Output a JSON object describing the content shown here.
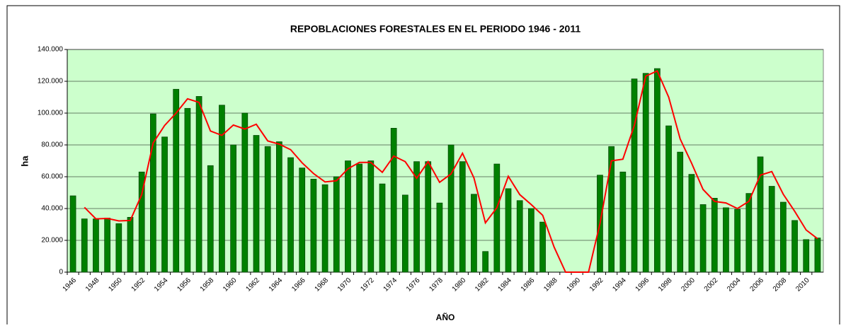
{
  "chart_data": {
    "type": "bar",
    "title": "REPOBLACIONES FORESTALES EN EL PERIODO 1946 - 2011",
    "y_label": "ha",
    "x_label": "AÑO",
    "categories": [
      "1946",
      null,
      "1948",
      null,
      "1950",
      null,
      "1952",
      null,
      "1954",
      null,
      "1956",
      null,
      "1958",
      null,
      "1960",
      null,
      "1962",
      null,
      "1964",
      null,
      "1966",
      null,
      "1968",
      null,
      "1970",
      null,
      "1972",
      null,
      "1974",
      null,
      "1976",
      null,
      "1978",
      null,
      "1980",
      null,
      "1982",
      null,
      "1984",
      null,
      "1986",
      null,
      "1988",
      null,
      "1990",
      null,
      "1992",
      null,
      "1994",
      null,
      "1996",
      null,
      "1998",
      null,
      "2000",
      null,
      "2002",
      null,
      "2004",
      null,
      "2006",
      null,
      "2008",
      null,
      "2010",
      null
    ],
    "series": [
      {
        "type": "bar",
        "color": "#008000",
        "values": [
          48000,
          33500,
          33500,
          34000,
          30500,
          34500,
          63000,
          99500,
          85000,
          115000,
          103000,
          110500,
          67000,
          105000,
          80000,
          100000,
          86000,
          79000,
          82000,
          72000,
          65500,
          58500,
          55000,
          60000,
          70000,
          68000,
          70000,
          55500,
          90500,
          48500,
          69500,
          69500,
          43500,
          80000,
          69500,
          49000,
          13000,
          68000,
          52500,
          45000,
          40000,
          31500,
          0,
          0,
          0,
          0,
          61000,
          79000,
          63000,
          121500,
          125000,
          128000,
          92000,
          75500,
          61500,
          42500,
          46500,
          40500,
          39500,
          49500,
          72500,
          54000,
          44000,
          32500,
          20500,
          21500
        ]
      },
      {
        "type": "line",
        "color": "#ff0000",
        "values": [
          null,
          40750,
          33500,
          33750,
          32250,
          32500,
          48750,
          81250,
          92250,
          100000,
          109000,
          106750,
          88750,
          86000,
          92500,
          90000,
          93000,
          82500,
          80500,
          77000,
          68750,
          62000,
          56750,
          57500,
          65000,
          69000,
          69000,
          62750,
          73000,
          69500,
          59000,
          69500,
          56500,
          61750,
          74750,
          59250,
          31000,
          40500,
          60250,
          48750,
          42500,
          35750,
          15750,
          0,
          0,
          0,
          30500,
          70000,
          71000,
          92250,
          123250,
          126500,
          110000,
          83750,
          68500,
          52000,
          44500,
          43500,
          40000,
          44500,
          61000,
          63250,
          49000,
          38250,
          26500,
          21000
        ]
      }
    ],
    "ylim": [
      0,
      140000
    ],
    "yticks": [
      0,
      {
        "value": 20000,
        "label": "20.000"
      },
      {
        "value": 40000,
        "label": "40.000"
      },
      {
        "value": 60000,
        "label": "60.000"
      },
      {
        "value": 80000,
        "label": "80.000"
      },
      {
        "value": 100000,
        "label": "100.000"
      },
      {
        "value": 120000,
        "label": "120.000"
      },
      {
        "value": 140000,
        "label": "140.000"
      }
    ],
    "grid": true,
    "background": "#ccffcc"
  }
}
